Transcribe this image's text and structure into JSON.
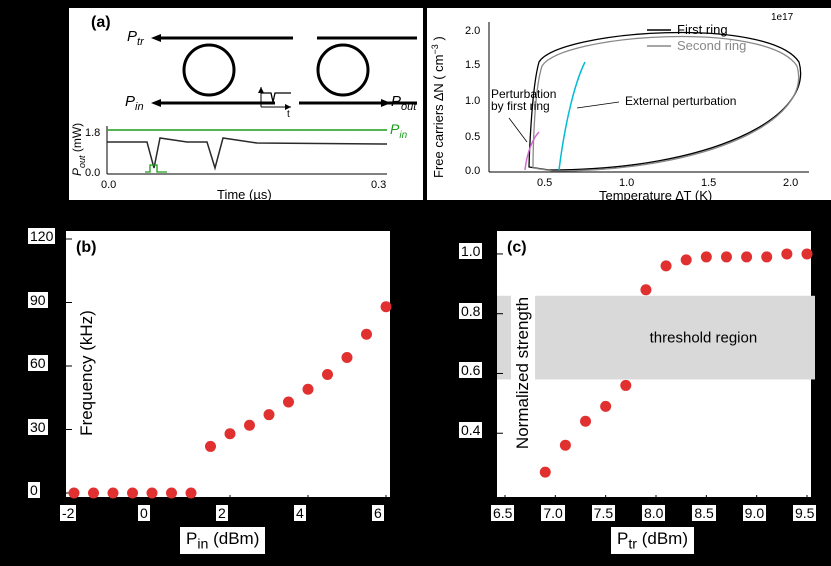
{
  "panel_a": {
    "label": "(a)",
    "schematic": {
      "P_tr": "P",
      "P_tr_sub": "tr",
      "P_in": "P",
      "P_in_sub": "in",
      "P_out": "P",
      "P_out_sub": "out",
      "t_label": "t"
    },
    "timeseries": {
      "ylabel": "P",
      "ylabel_sub": "out",
      "ylabel_unit": " (mW)",
      "xlabel": "Time (µs)",
      "xticks": [
        "0.0",
        "0.3"
      ],
      "yticks": [
        "0.0",
        "1.8"
      ],
      "Pin_legend": "P",
      "Pin_legend_sub": "in",
      "line_color": "#2a2a2a",
      "pin_color": "#1a9e1a"
    },
    "phaseplot": {
      "ylabel_line1": "Free carriers ∆N ( cm",
      "ylabel_sup": "−3",
      "ylabel_line2": " )",
      "exponent": "1e17",
      "xlabel": "Temperature ∆T (K)",
      "xticks": [
        "0.5",
        "1.0",
        "1.5",
        "2.0"
      ],
      "yticks": [
        "0.0",
        "0.5",
        "1.0",
        "1.5",
        "2.0"
      ],
      "legend_first": "First ring",
      "legend_second": "Second ring",
      "annot_pert": "Perturbation by first ring",
      "annot_ext": "External perturbation",
      "first_color": "#000000",
      "second_color": "#888888",
      "ext_color": "#00bcd4",
      "pert_color": "#d06ad0"
    }
  },
  "panel_b": {
    "label": "(b)",
    "type": "scatter",
    "xlabel": "P",
    "xlabel_sub": "in",
    "xlabel_unit": " (dBm)",
    "ylabel": "Frequency (kHz)",
    "xlim": [
      -2,
      6
    ],
    "ylim": [
      0,
      120
    ],
    "xticks": [
      -2,
      0,
      2,
      4,
      6
    ],
    "yticks": [
      0,
      30,
      60,
      90,
      120
    ],
    "marker_color": "#e03030",
    "background": "#ffffff",
    "data": [
      [
        -2,
        0
      ],
      [
        -1.5,
        0
      ],
      [
        -1,
        0
      ],
      [
        -0.5,
        0
      ],
      [
        0,
        0
      ],
      [
        0.5,
        0
      ],
      [
        1,
        0
      ],
      [
        1.5,
        22
      ],
      [
        2,
        28
      ],
      [
        2.5,
        32
      ],
      [
        3,
        37
      ],
      [
        3.5,
        43
      ],
      [
        4,
        49
      ],
      [
        4.5,
        56
      ],
      [
        5,
        64
      ],
      [
        5.5,
        75
      ],
      [
        6,
        88
      ]
    ]
  },
  "panel_c": {
    "label": "(c)",
    "type": "scatter",
    "xlabel": "P",
    "xlabel_sub": "tr",
    "xlabel_unit": " (dBm)",
    "ylabel": "Normalized strength",
    "xlim": [
      6.5,
      9.5
    ],
    "ylim": [
      0.2,
      1.05
    ],
    "xticks": [
      6.5,
      7.0,
      7.5,
      8.0,
      8.5,
      9.0,
      9.5
    ],
    "yticks": [
      0.4,
      0.6,
      0.8,
      1.0
    ],
    "marker_color": "#e03030",
    "background": "#ffffff",
    "threshold_label": "threshold region",
    "threshold_lo": 0.58,
    "threshold_hi": 0.86,
    "threshold_fill": "#d9d9d9",
    "data": [
      [
        6.9,
        0.27
      ],
      [
        7.1,
        0.36
      ],
      [
        7.3,
        0.44
      ],
      [
        7.5,
        0.49
      ],
      [
        7.7,
        0.56
      ],
      [
        7.9,
        0.88
      ],
      [
        8.1,
        0.96
      ],
      [
        8.3,
        0.98
      ],
      [
        8.5,
        0.99
      ],
      [
        8.7,
        0.99
      ],
      [
        8.9,
        0.99
      ],
      [
        9.1,
        0.99
      ],
      [
        9.3,
        1.0
      ],
      [
        9.5,
        1.0
      ]
    ]
  }
}
